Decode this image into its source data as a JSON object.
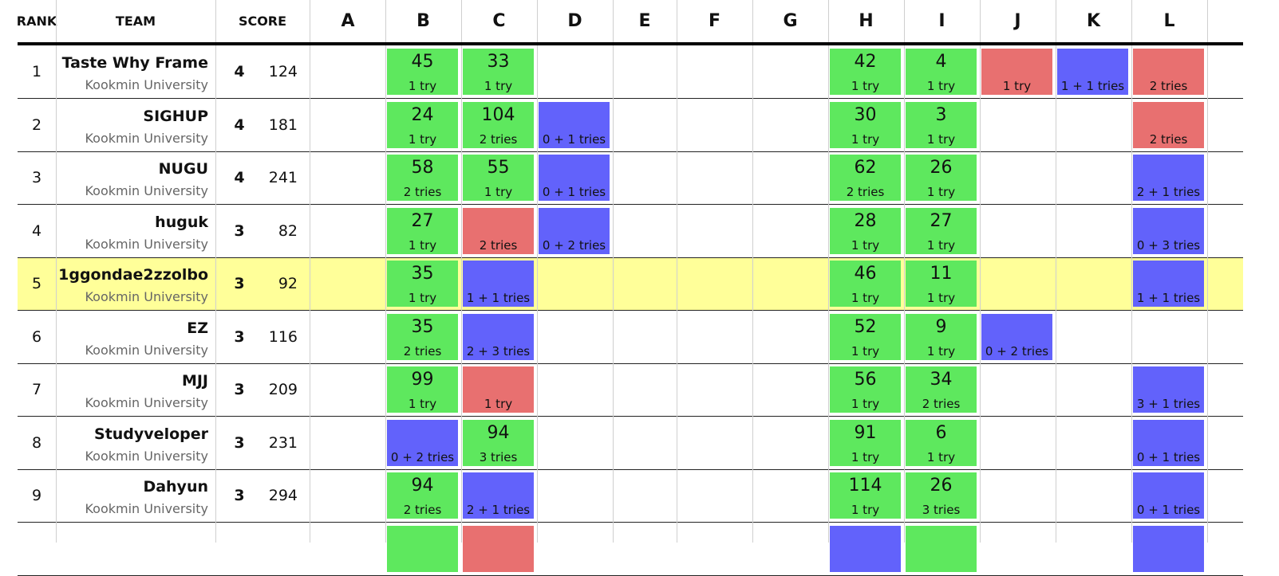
{
  "headers": {
    "rank": "RANK",
    "team": "TEAM",
    "score": "SCORE",
    "problems": [
      "A",
      "B",
      "C",
      "D",
      "E",
      "F",
      "G",
      "H",
      "I",
      "J",
      "K",
      "L"
    ]
  },
  "colors": {
    "accepted": "#5ee85e",
    "rejected": "#e87070",
    "pending": "#6262fb",
    "highlight": "#ffff99"
  },
  "rows": [
    {
      "rank": "1",
      "name": "Taste Why Frame",
      "university": "Kookmin University",
      "solved": "4",
      "penalty": "124",
      "highlight": false,
      "cells": [
        {
          "p": "B",
          "s": "ac",
          "time": "45",
          "tries": "1 try"
        },
        {
          "p": "C",
          "s": "ac",
          "time": "33",
          "tries": "1 try"
        },
        {
          "p": "H",
          "s": "ac",
          "time": "42",
          "tries": "1 try"
        },
        {
          "p": "I",
          "s": "ac",
          "time": "4",
          "tries": "1 try"
        },
        {
          "p": "J",
          "s": "wa",
          "time": "",
          "tries": "1 try"
        },
        {
          "p": "K",
          "s": "pd",
          "time": "",
          "tries": "1 + 1 tries"
        },
        {
          "p": "L",
          "s": "wa",
          "time": "",
          "tries": "2 tries"
        }
      ]
    },
    {
      "rank": "2",
      "name": "SIGHUP",
      "university": "Kookmin University",
      "solved": "4",
      "penalty": "181",
      "highlight": false,
      "cells": [
        {
          "p": "B",
          "s": "ac",
          "time": "24",
          "tries": "1 try"
        },
        {
          "p": "C",
          "s": "ac",
          "time": "104",
          "tries": "2 tries"
        },
        {
          "p": "D",
          "s": "pd",
          "time": "",
          "tries": "0 + 1 tries"
        },
        {
          "p": "H",
          "s": "ac",
          "time": "30",
          "tries": "1 try"
        },
        {
          "p": "I",
          "s": "ac",
          "time": "3",
          "tries": "1 try"
        },
        {
          "p": "L",
          "s": "wa",
          "time": "",
          "tries": "2 tries"
        }
      ]
    },
    {
      "rank": "3",
      "name": "NUGU",
      "university": "Kookmin University",
      "solved": "4",
      "penalty": "241",
      "highlight": false,
      "cells": [
        {
          "p": "B",
          "s": "ac",
          "time": "58",
          "tries": "2 tries"
        },
        {
          "p": "C",
          "s": "ac",
          "time": "55",
          "tries": "1 try"
        },
        {
          "p": "D",
          "s": "pd",
          "time": "",
          "tries": "0 + 1 tries"
        },
        {
          "p": "H",
          "s": "ac",
          "time": "62",
          "tries": "2 tries"
        },
        {
          "p": "I",
          "s": "ac",
          "time": "26",
          "tries": "1 try"
        },
        {
          "p": "L",
          "s": "pd",
          "time": "",
          "tries": "2 + 1 tries"
        }
      ]
    },
    {
      "rank": "4",
      "name": "huguk",
      "university": "Kookmin University",
      "solved": "3",
      "penalty": "82",
      "highlight": false,
      "cells": [
        {
          "p": "B",
          "s": "ac",
          "time": "27",
          "tries": "1 try"
        },
        {
          "p": "C",
          "s": "wa",
          "time": "",
          "tries": "2 tries"
        },
        {
          "p": "D",
          "s": "pd",
          "time": "",
          "tries": "0 + 2 tries"
        },
        {
          "p": "H",
          "s": "ac",
          "time": "28",
          "tries": "1 try"
        },
        {
          "p": "I",
          "s": "ac",
          "time": "27",
          "tries": "1 try"
        },
        {
          "p": "L",
          "s": "pd",
          "time": "",
          "tries": "0 + 3 tries"
        }
      ]
    },
    {
      "rank": "5",
      "name": "1ggondae2zzolbo",
      "university": "Kookmin University",
      "solved": "3",
      "penalty": "92",
      "highlight": true,
      "cells": [
        {
          "p": "B",
          "s": "ac",
          "time": "35",
          "tries": "1 try"
        },
        {
          "p": "C",
          "s": "pd",
          "time": "",
          "tries": "1 + 1 tries"
        },
        {
          "p": "H",
          "s": "ac",
          "time": "46",
          "tries": "1 try"
        },
        {
          "p": "I",
          "s": "ac",
          "time": "11",
          "tries": "1 try"
        },
        {
          "p": "L",
          "s": "pd",
          "time": "",
          "tries": "1 + 1 tries"
        }
      ]
    },
    {
      "rank": "6",
      "name": "EZ",
      "university": "Kookmin University",
      "solved": "3",
      "penalty": "116",
      "highlight": false,
      "cells": [
        {
          "p": "B",
          "s": "ac",
          "time": "35",
          "tries": "2 tries"
        },
        {
          "p": "C",
          "s": "pd",
          "time": "",
          "tries": "2 + 3 tries"
        },
        {
          "p": "H",
          "s": "ac",
          "time": "52",
          "tries": "1 try"
        },
        {
          "p": "I",
          "s": "ac",
          "time": "9",
          "tries": "1 try"
        },
        {
          "p": "J",
          "s": "pd",
          "time": "",
          "tries": "0 + 2 tries"
        }
      ]
    },
    {
      "rank": "7",
      "name": "MJJ",
      "university": "Kookmin University",
      "solved": "3",
      "penalty": "209",
      "highlight": false,
      "cells": [
        {
          "p": "B",
          "s": "ac",
          "time": "99",
          "tries": "1 try"
        },
        {
          "p": "C",
          "s": "wa",
          "time": "",
          "tries": "1 try"
        },
        {
          "p": "H",
          "s": "ac",
          "time": "56",
          "tries": "1 try"
        },
        {
          "p": "I",
          "s": "ac",
          "time": "34",
          "tries": "2 tries"
        },
        {
          "p": "L",
          "s": "pd",
          "time": "",
          "tries": "3 + 1 tries"
        }
      ]
    },
    {
      "rank": "8",
      "name": "Studyveloper",
      "university": "Kookmin University",
      "solved": "3",
      "penalty": "231",
      "highlight": false,
      "cells": [
        {
          "p": "B",
          "s": "pd",
          "time": "",
          "tries": "0 + 2 tries"
        },
        {
          "p": "C",
          "s": "ac",
          "time": "94",
          "tries": "3 tries"
        },
        {
          "p": "H",
          "s": "ac",
          "time": "91",
          "tries": "1 try"
        },
        {
          "p": "I",
          "s": "ac",
          "time": "6",
          "tries": "1 try"
        },
        {
          "p": "L",
          "s": "pd",
          "time": "",
          "tries": "0 + 1 tries"
        }
      ]
    },
    {
      "rank": "9",
      "name": "Dahyun",
      "university": "Kookmin University",
      "solved": "3",
      "penalty": "294",
      "highlight": false,
      "cells": [
        {
          "p": "B",
          "s": "ac",
          "time": "94",
          "tries": "2 tries"
        },
        {
          "p": "C",
          "s": "pd",
          "time": "",
          "tries": "2 + 1 tries"
        },
        {
          "p": "H",
          "s": "ac",
          "time": "114",
          "tries": "1 try"
        },
        {
          "p": "I",
          "s": "ac",
          "time": "26",
          "tries": "3 tries"
        },
        {
          "p": "L",
          "s": "pd",
          "time": "",
          "tries": "0 + 1 tries"
        }
      ]
    },
    {
      "rank": "",
      "name": "",
      "university": "",
      "solved": "",
      "penalty": "",
      "highlight": false,
      "cells": [
        {
          "p": "B",
          "s": "ac",
          "time": "",
          "tries": ""
        },
        {
          "p": "C",
          "s": "wa",
          "time": "",
          "tries": ""
        },
        {
          "p": "H",
          "s": "pd",
          "time": "",
          "tries": ""
        },
        {
          "p": "I",
          "s": "ac",
          "time": "",
          "tries": ""
        },
        {
          "p": "L",
          "s": "pd",
          "time": "",
          "tries": ""
        }
      ]
    }
  ]
}
